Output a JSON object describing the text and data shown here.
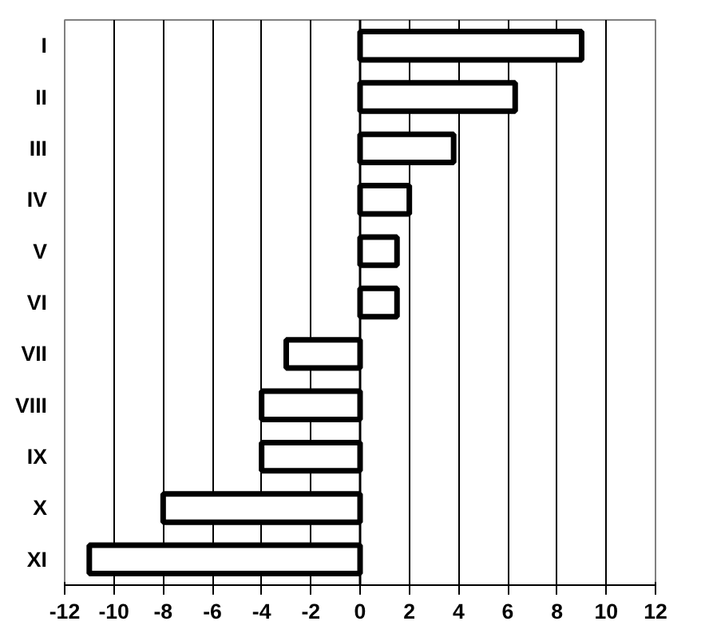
{
  "chart_data": {
    "type": "bar",
    "orientation": "horizontal",
    "categories": [
      "I",
      "II",
      "III",
      "IV",
      "V",
      "VI",
      "VII",
      "VIII",
      "IX",
      "X",
      "XI"
    ],
    "values": [
      9,
      6.3,
      3.8,
      2,
      1.5,
      1.5,
      -3,
      -4,
      -4,
      -8,
      -11
    ],
    "color": "#ffffff",
    "xlim": [
      -12,
      12
    ],
    "xticks": [
      -12,
      -10,
      -8,
      -6,
      -4,
      -2,
      0,
      2,
      4,
      6,
      8,
      10,
      12
    ],
    "grid": "x"
  }
}
